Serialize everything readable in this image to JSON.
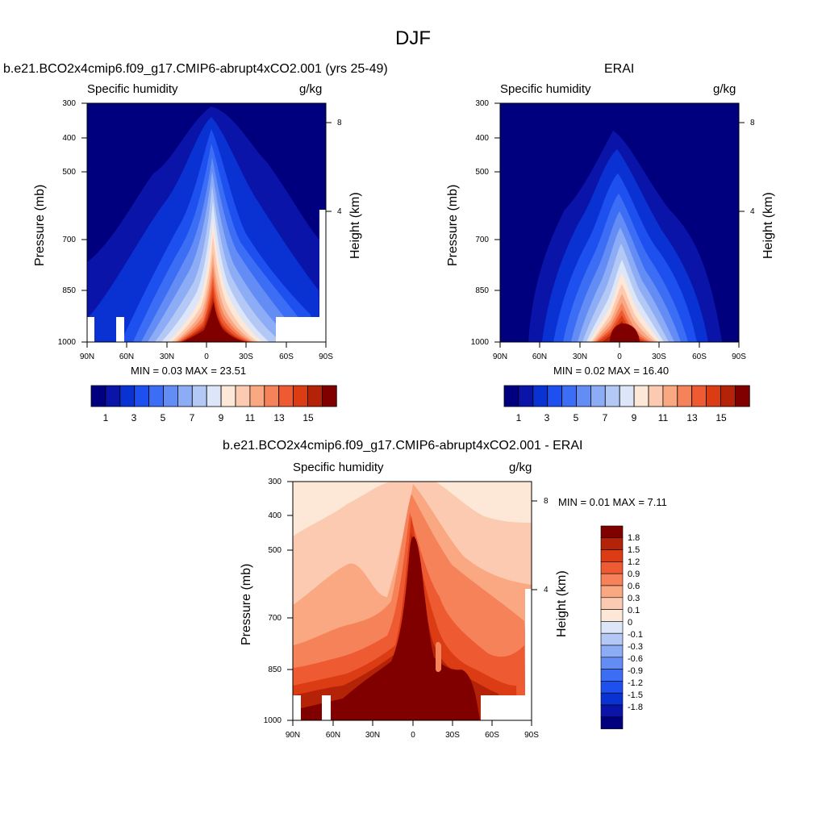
{
  "figure": {
    "title": "DJF"
  },
  "colors": {
    "abs_palette": [
      "#00007f",
      "#0a14a8",
      "#0a32d2",
      "#1e50f0",
      "#3c6ef5",
      "#648cf5",
      "#8cacf5",
      "#b4c8f5",
      "#dce6f8",
      "#fde7d6",
      "#fccab0",
      "#f9a882",
      "#f6825a",
      "#ee5a32",
      "#dc3c14",
      "#b42208",
      "#800000"
    ],
    "diff_palette": [
      "#00007f",
      "#0a14a8",
      "#0a32d2",
      "#1e50f0",
      "#3c6ef5",
      "#648cf5",
      "#8cacf5",
      "#b4c8f5",
      "#dce6f8",
      "#fde7d6",
      "#fccab0",
      "#f9a882",
      "#f6825a",
      "#ee5a32",
      "#dc3c14",
      "#b42208",
      "#800000"
    ]
  },
  "panels": [
    {
      "id": "model",
      "title": "b.e21.BCO2x4cmip6.f09_g17.CMIP6-abrupt4xCO2.001 (yrs 25-49)",
      "variable": "Specific humidity",
      "units": "g/kg",
      "y_left_label": "Pressure (mb)",
      "y_right_label": "Height (km)",
      "minmax": "MIN =   0.03  MAX =  23.51"
    },
    {
      "id": "obs",
      "title": "ERAI",
      "variable": "Specific humidity",
      "units": "g/kg",
      "y_left_label": "Pressure (mb)",
      "y_right_label": "Height (km)",
      "minmax": "MIN =   0.02  MAX =  16.40"
    },
    {
      "id": "diff",
      "title": "b.e21.BCO2x4cmip6.f09_g17.CMIP6-abrupt4xCO2.001 - ERAI",
      "variable": "Specific humidity",
      "units": "g/kg",
      "y_left_label": "Pressure (mb)",
      "y_right_label": "Height (km)",
      "minmax": "MIN =   0.01  MAX =   7.11"
    }
  ],
  "chart_data": [
    {
      "type": "heatmap",
      "panel": "model",
      "title": "b.e21.BCO2x4cmip6.f09_g17.CMIP6-abrupt4xCO2.001 (yrs 25-49)",
      "subtitle_left": "Specific humidity",
      "subtitle_right": "g/kg",
      "xlabel": "",
      "ylabel": "Pressure (mb)",
      "ylabel_right": "Height (km)",
      "x_ticks": [
        "90N",
        "60N",
        "30N",
        "0",
        "30S",
        "60S",
        "90S"
      ],
      "y_ticks": [
        "300",
        "400",
        "500",
        "700",
        "850",
        "1000"
      ],
      "y_right_ticks": [
        "8",
        "4"
      ],
      "colorbar_labels": [
        "1",
        "3",
        "5",
        "7",
        "9",
        "11",
        "13",
        "15"
      ],
      "min": 0.03,
      "max": 23.51
    },
    {
      "type": "heatmap",
      "panel": "obs",
      "title": "ERAI",
      "subtitle_left": "Specific humidity",
      "subtitle_right": "g/kg",
      "xlabel": "",
      "ylabel": "Pressure (mb)",
      "ylabel_right": "Height (km)",
      "x_ticks": [
        "90N",
        "60N",
        "30N",
        "0",
        "30S",
        "60S",
        "90S"
      ],
      "y_ticks": [
        "300",
        "400",
        "500",
        "700",
        "850",
        "1000"
      ],
      "y_right_ticks": [
        "8",
        "4"
      ],
      "colorbar_labels": [
        "1",
        "3",
        "5",
        "7",
        "9",
        "11",
        "13",
        "15"
      ],
      "min": 0.02,
      "max": 16.4
    },
    {
      "type": "heatmap",
      "panel": "diff",
      "title": "b.e21.BCO2x4cmip6.f09_g17.CMIP6-abrupt4xCO2.001 - ERAI",
      "subtitle_left": "Specific humidity",
      "subtitle_right": "g/kg",
      "xlabel": "",
      "ylabel": "Pressure (mb)",
      "ylabel_right": "Height (km)",
      "x_ticks": [
        "90N",
        "60N",
        "30N",
        "0",
        "30S",
        "60S",
        "90S"
      ],
      "y_ticks": [
        "300",
        "400",
        "500",
        "700",
        "850",
        "1000"
      ],
      "y_right_ticks": [
        "8",
        "4"
      ],
      "colorbar_labels": [
        "1.8",
        "1.5",
        "1.2",
        "0.9",
        "0.6",
        "0.3",
        "0.1",
        "0",
        "-0.1",
        "-0.3",
        "-0.6",
        "-0.9",
        "-1.2",
        "-1.5",
        "-1.8"
      ],
      "min": 0.01,
      "max": 7.11
    }
  ]
}
